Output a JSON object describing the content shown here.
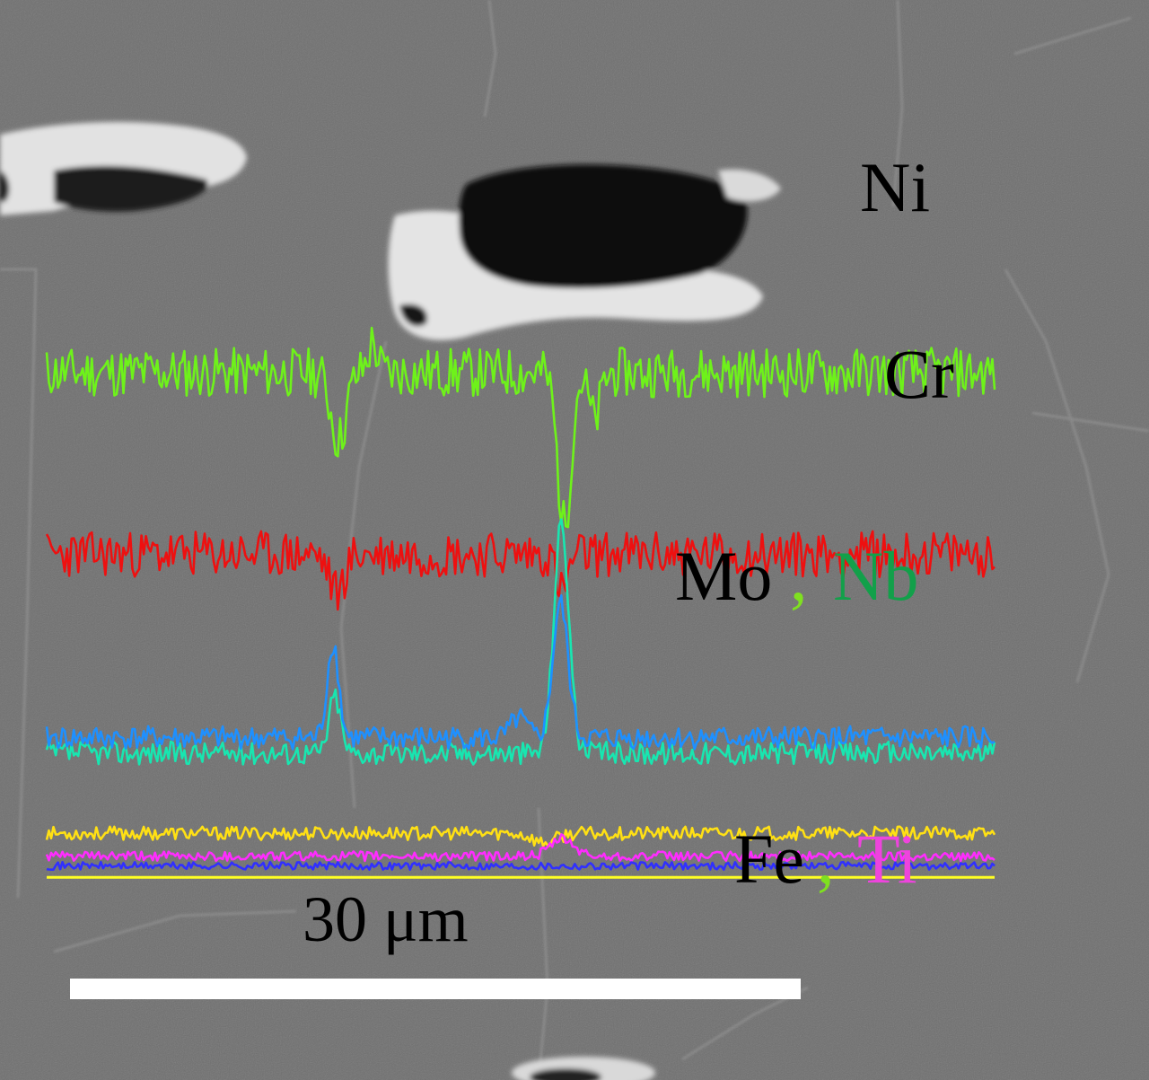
{
  "chart_data": {
    "type": "line",
    "title": "",
    "xlabel": "",
    "ylabel": "",
    "x_range": [
      0,
      100
    ],
    "scale_bar": {
      "label": "30 μm",
      "color": "#ffffff"
    },
    "element_labels": [
      {
        "id": "ni",
        "text": "Ni",
        "color": "#000000"
      },
      {
        "id": "cr",
        "text": "Cr",
        "color": "#000000"
      },
      {
        "id": "mo",
        "text": "Mo",
        "color": "#000000"
      },
      {
        "id": "nb",
        "text": "Nb",
        "color": "#12a04a"
      },
      {
        "id": "fe",
        "text": "Fe",
        "color": "#000000"
      },
      {
        "id": "ti",
        "text": "Ti",
        "color": "#ee44dd"
      }
    ],
    "separators": [
      {
        "id": "mo-nb",
        "text": ",",
        "color": "#7fe020"
      },
      {
        "id": "fe-ti",
        "text": ",",
        "color": "#7fe020"
      }
    ],
    "series": [
      {
        "name": "Ni",
        "color": "#6ef21a",
        "baseline": 74,
        "noise": 2.6,
        "seed": 11,
        "features": [
          {
            "x": 30.8,
            "amp": -7,
            "width": 0.8
          },
          {
            "x": 34.4,
            "amp": 3,
            "width": 0.5
          },
          {
            "x": 54.6,
            "amp": -16,
            "width": 0.7
          },
          {
            "x": 57.8,
            "amp": -5,
            "width": 0.6
          }
        ]
      },
      {
        "name": "Cr",
        "color": "#ee1010",
        "baseline": 55,
        "noise": 2.4,
        "seed": 23,
        "features": [
          {
            "x": 30.6,
            "amp": -4,
            "width": 0.8
          },
          {
            "x": 54.4,
            "amp": -4,
            "width": 0.6
          }
        ]
      },
      {
        "name": "Nb",
        "color": "#18e6b0",
        "baseline": 34.2,
        "noise": 1.2,
        "seed": 37,
        "features": [
          {
            "x": 30.4,
            "amp": 6,
            "width": 0.6
          },
          {
            "x": 54.3,
            "amp": 24,
            "width": 0.8
          }
        ]
      },
      {
        "name": "Mo",
        "color": "#1e90ff",
        "baseline": 35.8,
        "noise": 1.2,
        "seed": 41,
        "features": [
          {
            "x": 30.2,
            "amp": 10,
            "width": 0.6
          },
          {
            "x": 54.2,
            "amp": 14,
            "width": 0.8
          },
          {
            "x": 49.8,
            "amp": 2,
            "width": 0.8
          }
        ]
      },
      {
        "name": "Fe",
        "color": "#ffe014",
        "baseline": 25.8,
        "noise": 0.7,
        "seed": 53,
        "features": [
          {
            "x": 52.5,
            "amp": -1,
            "width": 1.2
          }
        ]
      },
      {
        "name": "Ti",
        "color": "#ff2cff",
        "baseline": 23.4,
        "noise": 0.5,
        "seed": 61,
        "features": [
          {
            "x": 54.4,
            "amp": 1.8,
            "width": 1.2
          }
        ]
      },
      {
        "name": "",
        "color": "#3030ff",
        "baseline": 22.4,
        "noise": 0.4,
        "seed": 71,
        "features": []
      },
      {
        "name": "",
        "color": "#ffff22",
        "baseline": 21.2,
        "noise": 0,
        "seed": 0,
        "features": []
      }
    ]
  }
}
